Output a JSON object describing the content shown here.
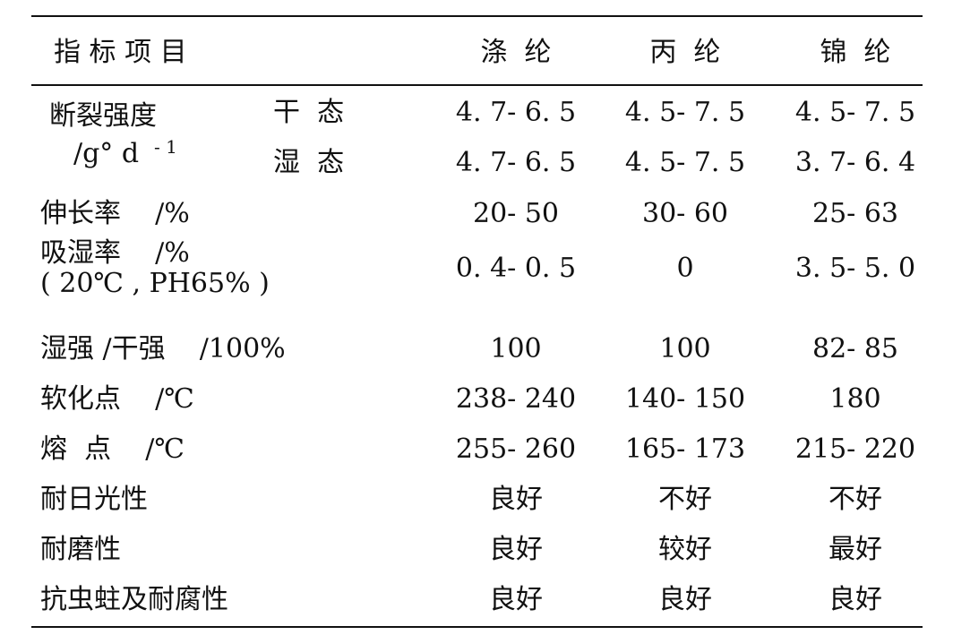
{
  "header": {
    "item": "指 标 项 目",
    "cols": [
      "涤  纶",
      "丙  纶",
      "锦  纶"
    ]
  },
  "rows": [
    {
      "label": "断裂强度",
      "label2": "/g° d",
      "label2_sup": "- 1",
      "sub": "干  态",
      "values": [
        "4. 7- 6. 5",
        "4. 5- 7. 5",
        "4. 5- 7. 5"
      ]
    },
    {
      "label": "",
      "sub": "湿  态",
      "values": [
        "4. 7- 6. 5",
        "4. 5- 7. 5",
        "3. 7- 6. 4"
      ]
    },
    {
      "label": "伸长率    /%",
      "values": [
        "20- 50",
        "30- 60",
        "25- 63"
      ]
    },
    {
      "label": "吸湿率    /%",
      "label2": "( 20℃ , PH65% )",
      "values": [
        "0. 4- 0. 5",
        "0",
        "3. 5- 5. 0"
      ]
    },
    {
      "label": "湿强 /干强    /100%",
      "values": [
        "100",
        "100",
        "82- 85"
      ]
    },
    {
      "label": "软化点    /℃",
      "values": [
        "238- 240",
        "140- 150",
        "180"
      ]
    },
    {
      "label": "熔  点    /℃",
      "values": [
        "255- 260",
        "165- 173",
        "215- 220"
      ]
    },
    {
      "label": "耐日光性",
      "values": [
        "良好",
        "不好",
        "不好"
      ]
    },
    {
      "label": "耐磨性",
      "values": [
        "良好",
        "较好",
        "最好"
      ]
    },
    {
      "label": "抗虫蛀及耐腐性",
      "values": [
        "良好",
        "良好",
        "良好"
      ]
    }
  ]
}
